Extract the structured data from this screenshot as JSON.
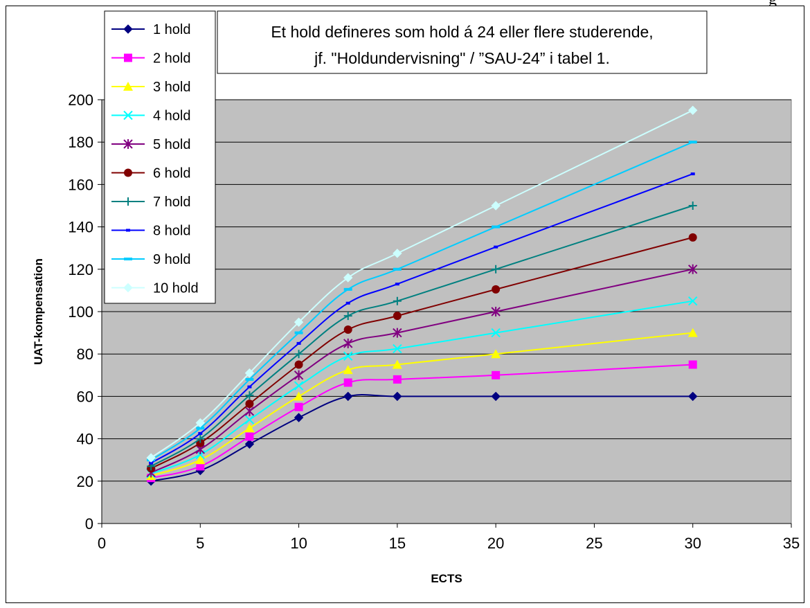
{
  "top_fragment": "g",
  "chart_data": {
    "type": "line",
    "title": "",
    "xlabel": "ECTS",
    "ylabel": "UAT-kompensation",
    "xlim": [
      0,
      35
    ],
    "ylim": [
      0,
      200
    ],
    "x_ticks": [
      0,
      5,
      10,
      15,
      20,
      25,
      30,
      35
    ],
    "y_ticks": [
      0,
      20,
      40,
      60,
      80,
      100,
      120,
      140,
      160,
      180,
      200
    ],
    "grid": "horizontal major gridlines",
    "plot_background": "#C0C0C0",
    "legend_placement": "top-left",
    "annotation": {
      "lines": [
        "Et hold defineres som hold á 24 eller flere studerende,",
        "jf. \"Holdundervisning\" / ”SAU-24” i tabel 1."
      ]
    },
    "x": [
      2.5,
      5,
      7.5,
      10,
      12.5,
      15,
      20,
      30
    ],
    "series": [
      {
        "name": "1 hold",
        "color": "#000080",
        "marker": "diamond",
        "values": [
          20,
          25,
          37.5,
          50,
          60,
          60,
          60,
          60
        ]
      },
      {
        "name": "2 hold",
        "color": "#FF00FF",
        "marker": "square",
        "values": [
          21.5,
          27,
          41,
          55,
          66.5,
          68,
          70,
          75
        ]
      },
      {
        "name": "3 hold",
        "color": "#FFFF00",
        "marker": "triangle",
        "values": [
          22.5,
          30,
          45,
          60,
          72.5,
          75,
          80,
          90
        ]
      },
      {
        "name": "4 hold",
        "color": "#00FFFF",
        "marker": "x",
        "values": [
          23.5,
          32.5,
          49,
          65,
          79,
          82.5,
          90,
          105
        ]
      },
      {
        "name": "5 hold",
        "color": "#800080",
        "marker": "star",
        "values": [
          24,
          35,
          53,
          70,
          85,
          90,
          100,
          120
        ]
      },
      {
        "name": "6 hold",
        "color": "#800000",
        "marker": "circle",
        "values": [
          26,
          38,
          56.5,
          75,
          91.5,
          98,
          110.5,
          135
        ]
      },
      {
        "name": "7 hold",
        "color": "#008080",
        "marker": "plus",
        "values": [
          27,
          40,
          60.5,
          80,
          98,
          105,
          120,
          150
        ]
      },
      {
        "name": "8 hold",
        "color": "#0000FF",
        "marker": "dash",
        "values": [
          28.5,
          42.5,
          64.5,
          85,
          104,
          113,
          130.5,
          165
        ]
      },
      {
        "name": "9 hold",
        "color": "#00CCFF",
        "marker": "bar",
        "values": [
          30,
          45,
          68,
          90,
          110.5,
          120,
          140,
          180
        ]
      },
      {
        "name": "10 hold",
        "color": "#CCFFFF",
        "marker": "diamond",
        "values": [
          31,
          47.5,
          71,
          95,
          116,
          127.5,
          150,
          195
        ]
      }
    ]
  }
}
